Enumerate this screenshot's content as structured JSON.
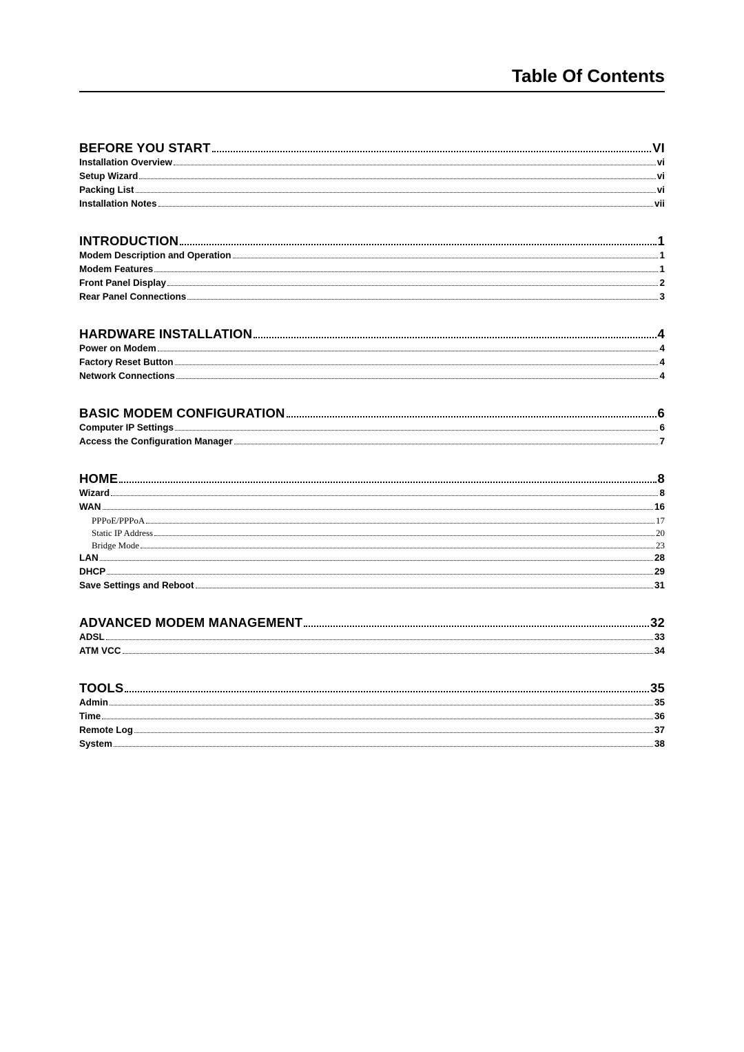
{
  "title": "Table Of Contents",
  "sections": {
    "s0": {
      "head": {
        "label": "BEFORE YOU START",
        "page": "VI"
      },
      "subs": [
        {
          "label": "Installation Overview",
          "page": "vi"
        },
        {
          "label": "Setup Wizard",
          "page": "vi"
        },
        {
          "label": "Packing List",
          "page": "vi"
        },
        {
          "label": "Installation Notes",
          "page": "vii"
        }
      ]
    },
    "s1": {
      "head": {
        "label": "INTRODUCTION",
        "page": "1"
      },
      "subs": [
        {
          "label": "Modem Description and Operation",
          "page": "1"
        },
        {
          "label": "Modem Features",
          "page": "1"
        },
        {
          "label": "Front Panel Display",
          "page": "2"
        },
        {
          "label": "Rear Panel Connections",
          "page": "3"
        }
      ]
    },
    "s2": {
      "head": {
        "label": "HARDWARE INSTALLATION",
        "page": "4"
      },
      "subs": [
        {
          "label": "Power on Modem",
          "page": "4"
        },
        {
          "label": "Factory Reset Button",
          "page": "4"
        },
        {
          "label": "Network Connections",
          "page": "4"
        }
      ]
    },
    "s3": {
      "head": {
        "label": "BASIC MODEM CONFIGURATION",
        "page": "6"
      },
      "subs": [
        {
          "label": "Computer IP Settings",
          "page": "6"
        },
        {
          "label": "Access the Configuration Manager",
          "page": "7"
        }
      ]
    },
    "s4": {
      "head": {
        "label": "HOME",
        "page": "8"
      },
      "subs": [
        {
          "label": "Wizard",
          "page": "8"
        },
        {
          "label": "WAN",
          "page": "16"
        }
      ],
      "subsubs": [
        {
          "label": "PPPoE/PPPoA",
          "page": "17"
        },
        {
          "label": "Static IP Address",
          "page": "20"
        },
        {
          "label": "Bridge Mode",
          "page": "23"
        }
      ],
      "subs2": [
        {
          "label": "LAN",
          "page": "28"
        },
        {
          "label": "DHCP",
          "page": "29"
        },
        {
          "label": "Save Settings and Reboot",
          "page": "31"
        }
      ]
    },
    "s5": {
      "head": {
        "label": "ADVANCED MODEM MANAGEMENT",
        "page": "32"
      },
      "subs": [
        {
          "label": "ADSL",
          "page": "33"
        },
        {
          "label": "ATM VCC",
          "page": "34"
        }
      ]
    },
    "s6": {
      "head": {
        "label": "TOOLS",
        "page": "35"
      },
      "subs": [
        {
          "label": "Admin",
          "page": "35"
        },
        {
          "label": "Time",
          "page": "36"
        },
        {
          "label": "Remote Log",
          "page": "37"
        },
        {
          "label": "System",
          "page": "38"
        }
      ]
    }
  }
}
